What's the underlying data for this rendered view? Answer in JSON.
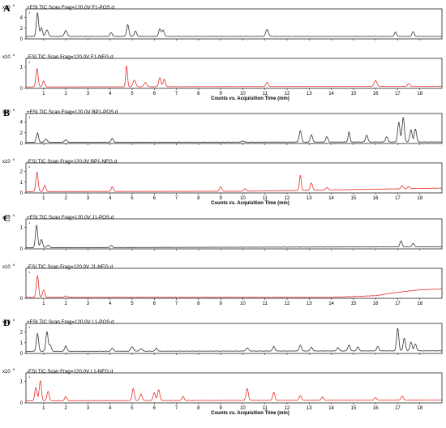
{
  "chart_data": {
    "type": "line",
    "scale_label": "x10",
    "scale_exponent": "6",
    "corner_label": "1",
    "xlabel": "Counts vs. Acquisition Time (min)",
    "xlim": [
      0.2,
      19
    ],
    "x_ticks": [
      1,
      2,
      3,
      4,
      5,
      6,
      7,
      8,
      9,
      10,
      11,
      12,
      13,
      14,
      15,
      16,
      17,
      18
    ],
    "colors": {
      "pos": "#333333",
      "neg": "#e8302a"
    },
    "panels": [
      {
        "letter": "A",
        "show_xlabel": true,
        "traces": [
          {
            "title": "+ESI TIC Scan Frag=120.0V F1-POS.d",
            "polarity": "pos",
            "y_ticks": [
              "0",
              "2",
              "4"
            ],
            "ylim": [
              0,
              5
            ],
            "baseline": 0.45,
            "drift": [
              [
                0.2,
                0.45
              ],
              [
                19,
                0.45
              ]
            ],
            "peaks": [
              [
                0.72,
                4.4,
                0.05
              ],
              [
                0.9,
                1.6,
                0.05
              ],
              [
                1.15,
                1.2,
                0.06
              ],
              [
                2.0,
                1.1,
                0.06
              ],
              [
                4.05,
                0.7,
                0.05
              ],
              [
                4.8,
                2.2,
                0.05
              ],
              [
                5.15,
                1.0,
                0.05
              ],
              [
                6.25,
                1.4,
                0.05
              ],
              [
                6.4,
                1.2,
                0.05
              ],
              [
                11.1,
                1.3,
                0.06
              ],
              [
                16.9,
                0.8,
                0.05
              ],
              [
                17.7,
                0.9,
                0.05
              ]
            ]
          },
          {
            "title": "-ESI TIC Scan Frag=120.0V F1-NEG.d",
            "polarity": "neg",
            "y_ticks": [
              "0",
              "1"
            ],
            "ylim": [
              0,
              1.6
            ],
            "baseline": 0.08,
            "drift": [
              [
                0.2,
                0.08
              ],
              [
                19,
                0.12
              ]
            ],
            "peaks": [
              [
                0.7,
                1.1,
                0.05
              ],
              [
                1.0,
                0.35,
                0.05
              ],
              [
                4.75,
                1.25,
                0.04
              ],
              [
                5.1,
                0.4,
                0.06
              ],
              [
                5.6,
                0.25,
                0.06
              ],
              [
                6.25,
                0.55,
                0.05
              ],
              [
                6.45,
                0.45,
                0.05
              ],
              [
                11.1,
                0.25,
                0.05
              ],
              [
                16.0,
                0.35,
                0.06
              ],
              [
                17.5,
                0.15,
                0.05
              ]
            ]
          }
        ]
      },
      {
        "letter": "B",
        "show_xlabel": true,
        "traces": [
          {
            "title": "+ESI TIC Scan Frag=120.0V BP1-POS.d",
            "polarity": "pos",
            "y_ticks": [
              "0",
              "2",
              "4"
            ],
            "ylim": [
              0,
              6.5
            ],
            "baseline": 0.25,
            "drift": [
              [
                0.2,
                0.25
              ],
              [
                19,
                0.35
              ]
            ],
            "peaks": [
              [
                0.72,
                2.3,
                0.05
              ],
              [
                1.1,
                0.8,
                0.06
              ],
              [
                2.0,
                0.6,
                0.06
              ],
              [
                4.1,
                0.9,
                0.05
              ],
              [
                10.0,
                0.3,
                0.05
              ],
              [
                12.6,
                2.8,
                0.05
              ],
              [
                13.1,
                1.8,
                0.05
              ],
              [
                13.8,
                1.3,
                0.05
              ],
              [
                14.8,
                2.5,
                0.04
              ],
              [
                15.6,
                1.7,
                0.05
              ],
              [
                16.5,
                1.3,
                0.05
              ],
              [
                17.05,
                4.8,
                0.05
              ],
              [
                17.25,
                6.0,
                0.05
              ],
              [
                17.6,
                3.0,
                0.05
              ],
              [
                17.8,
                3.2,
                0.05
              ]
            ]
          },
          {
            "title": "-ESI TIC Scan Frag=120.0V BP1-NEG.d",
            "polarity": "neg",
            "y_ticks": [
              "0",
              "1",
              "2"
            ],
            "ylim": [
              0,
              2.6
            ],
            "baseline": 0.12,
            "drift": [
              [
                0.2,
                0.12
              ],
              [
                10,
                0.15
              ],
              [
                19,
                0.45
              ]
            ],
            "peaks": [
              [
                0.7,
                1.9,
                0.05
              ],
              [
                1.05,
                0.6,
                0.05
              ],
              [
                4.1,
                0.45,
                0.05
              ],
              [
                9.0,
                0.45,
                0.05
              ],
              [
                10.1,
                0.25,
                0.05
              ],
              [
                12.6,
                1.5,
                0.04
              ],
              [
                13.1,
                0.7,
                0.05
              ],
              [
                13.8,
                0.25,
                0.05
              ],
              [
                17.2,
                0.3,
                0.05
              ],
              [
                17.5,
                0.2,
                0.05
              ]
            ]
          }
        ]
      },
      {
        "letter": "C",
        "show_xlabel": false,
        "traces": [
          {
            "title": "+ESI TIC Scan Frag=120.0V J1-POS.d",
            "polarity": "pos",
            "y_ticks": [
              "0",
              "1"
            ],
            "ylim": [
              0,
              1.6
            ],
            "baseline": 0.06,
            "drift": [
              [
                0.2,
                0.06
              ],
              [
                19,
                0.12
              ]
            ],
            "peaks": [
              [
                0.68,
                1.35,
                0.05
              ],
              [
                0.9,
                0.5,
                0.05
              ],
              [
                1.2,
                0.15,
                0.06
              ],
              [
                4.05,
                0.12,
                0.05
              ],
              [
                17.15,
                0.35,
                0.05
              ],
              [
                17.7,
                0.2,
                0.05
              ]
            ]
          },
          {
            "title": "-ESI TIC Scan Frag=120.0V J1-NEG.d",
            "polarity": "neg",
            "y_ticks": [
              "0"
            ],
            "ylim": [
              0,
              1.6
            ],
            "baseline": 0.05,
            "drift": [
              [
                0.2,
                0.05
              ],
              [
                14,
                0.05
              ],
              [
                16,
                0.15
              ],
              [
                17,
                0.35
              ],
              [
                18,
                0.5
              ],
              [
                19,
                0.55
              ]
            ],
            "peaks": [
              [
                0.72,
                1.3,
                0.05
              ],
              [
                1.0,
                0.45,
                0.05
              ],
              [
                2.0,
                0.08,
                0.06
              ]
            ]
          }
        ]
      },
      {
        "letter": "D",
        "show_xlabel": true,
        "traces": [
          {
            "title": "+ESI TIC Scan Frag=120.0V L1-POS.d",
            "polarity": "pos",
            "y_ticks": [
              "0",
              "1",
              "2"
            ],
            "ylim": [
              0,
              2.7
            ],
            "baseline": 0.2,
            "drift": [
              [
                0.2,
                0.2
              ],
              [
                19,
                0.25
              ]
            ],
            "peaks": [
              [
                0.72,
                1.8,
                0.05
              ],
              [
                1.15,
                2.0,
                0.05
              ],
              [
                1.3,
                0.6,
                0.05
              ],
              [
                2.0,
                0.55,
                0.05
              ],
              [
                4.1,
                0.3,
                0.05
              ],
              [
                5.0,
                0.45,
                0.06
              ],
              [
                5.4,
                0.25,
                0.06
              ],
              [
                6.1,
                0.3,
                0.05
              ],
              [
                10.2,
                0.3,
                0.06
              ],
              [
                11.4,
                0.45,
                0.05
              ],
              [
                12.6,
                0.6,
                0.05
              ],
              [
                13.1,
                0.4,
                0.05
              ],
              [
                14.3,
                0.35,
                0.05
              ],
              [
                14.8,
                0.6,
                0.05
              ],
              [
                15.2,
                0.4,
                0.05
              ],
              [
                16.1,
                0.45,
                0.05
              ],
              [
                17.0,
                2.3,
                0.05
              ],
              [
                17.3,
                1.3,
                0.05
              ],
              [
                17.6,
                0.9,
                0.05
              ],
              [
                17.8,
                0.7,
                0.05
              ]
            ]
          },
          {
            "title": "-ESI TIC Scan Frag=120.0V L1-NEG.d",
            "polarity": "neg",
            "y_ticks": [
              "0",
              "1"
            ],
            "ylim": [
              0,
              2.0
            ],
            "baseline": 0.15,
            "drift": [
              [
                0.2,
                0.15
              ],
              [
                19,
                0.2
              ]
            ],
            "peaks": [
              [
                0.65,
                1.0,
                0.05
              ],
              [
                0.85,
                1.5,
                0.05
              ],
              [
                1.2,
                0.7,
                0.05
              ],
              [
                2.0,
                0.3,
                0.05
              ],
              [
                5.05,
                0.9,
                0.05
              ],
              [
                5.4,
                0.5,
                0.05
              ],
              [
                6.0,
                0.6,
                0.05
              ],
              [
                6.2,
                0.8,
                0.05
              ],
              [
                7.3,
                0.3,
                0.05
              ],
              [
                10.2,
                0.9,
                0.05
              ],
              [
                11.4,
                0.6,
                0.05
              ],
              [
                12.6,
                0.35,
                0.05
              ],
              [
                13.6,
                0.25,
                0.05
              ],
              [
                16.0,
                0.2,
                0.05
              ],
              [
                17.2,
                0.3,
                0.05
              ]
            ]
          }
        ]
      }
    ]
  }
}
